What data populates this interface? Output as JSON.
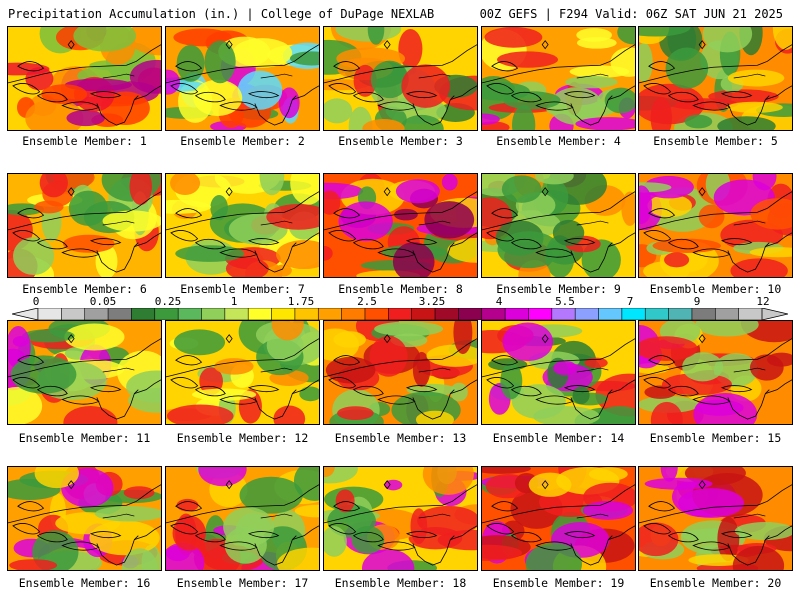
{
  "header": {
    "left": "Precipitation Accumulation (in.) | College of DuPage NEXLAB",
    "right": "00Z GEFS | F294 Valid: 06Z SAT JUN 21 2025"
  },
  "colorbar": {
    "labels": [
      "0",
      "0.05",
      "0.25",
      "1",
      "1.75",
      "2.5",
      "3.25",
      "4",
      "5.5",
      "7",
      "9",
      "12"
    ],
    "colors": [
      "#e6e6e6",
      "#c8c8c8",
      "#a0a0a0",
      "#7d7d7d",
      "#2e7d32",
      "#3c9a3c",
      "#5cb85c",
      "#8fcf5a",
      "#c6e65a",
      "#ffff2a",
      "#ffe600",
      "#ffc400",
      "#ffa000",
      "#ff7c00",
      "#ff5000",
      "#f01e1e",
      "#c81414",
      "#a00a28",
      "#8c0050",
      "#b4008c",
      "#dc00dc",
      "#ff00ff",
      "#b478ff",
      "#8ca0ff",
      "#64c8ff",
      "#00e6ff",
      "#30c8c8",
      "#50b4b4",
      "#7c7c7c",
      "#a0a0a0",
      "#c8c8c8"
    ]
  },
  "panels": [
    {
      "caption": "Ensemble Member: 1",
      "dominant": "#ffd400",
      "palette": [
        "#ff3c00",
        "#ff8c00",
        "#7dbf3c",
        "#f0142d",
        "#b4008c"
      ]
    },
    {
      "caption": "Ensemble Member: 2",
      "dominant": "#ffa000",
      "palette": [
        "#3c9a3c",
        "#ff3c00",
        "#dc00dc",
        "#5adcff",
        "#ffff2a"
      ]
    },
    {
      "caption": "Ensemble Member: 3",
      "dominant": "#ffd400",
      "palette": [
        "#3c9a3c",
        "#2e7d32",
        "#ff8c00",
        "#f01e1e",
        "#8fcf5a"
      ]
    },
    {
      "caption": "Ensemble Member: 4",
      "dominant": "#ffa000",
      "palette": [
        "#3c9a3c",
        "#f01e1e",
        "#ffff2a",
        "#8fcf5a",
        "#dc00dc"
      ]
    },
    {
      "caption": "Ensemble Member: 5",
      "dominant": "#ff8c00",
      "palette": [
        "#3c9a3c",
        "#2e7d32",
        "#f01e1e",
        "#ffd400",
        "#8fcf5a"
      ]
    },
    {
      "caption": "Ensemble Member: 6",
      "dominant": "#ffb400",
      "palette": [
        "#f01e1e",
        "#8fcf5a",
        "#3c9a3c",
        "#ffff2a",
        "#ff5000"
      ]
    },
    {
      "caption": "Ensemble Member: 7",
      "dominant": "#ffd400",
      "palette": [
        "#3c9a3c",
        "#8fcf5a",
        "#ff8c00",
        "#f01e1e",
        "#ffff2a"
      ]
    },
    {
      "caption": "Ensemble Member: 8",
      "dominant": "#ff5000",
      "palette": [
        "#dc00dc",
        "#f01e1e",
        "#3c9a3c",
        "#ffd400",
        "#8c0050"
      ]
    },
    {
      "caption": "Ensemble Member: 9",
      "dominant": "#ffd400",
      "palette": [
        "#3c9a3c",
        "#8fcf5a",
        "#f01e1e",
        "#ff8c00",
        "#2e7d32"
      ]
    },
    {
      "caption": "Ensemble Member: 10",
      "dominant": "#ff8c00",
      "palette": [
        "#f01e1e",
        "#ffd400",
        "#8fcf5a",
        "#dc00dc",
        "#ff5000"
      ]
    },
    {
      "caption": "Ensemble Member: 11",
      "dominant": "#ffa000",
      "palette": [
        "#3c9a3c",
        "#f01e1e",
        "#8fcf5a",
        "#dc00dc",
        "#ffff2a"
      ]
    },
    {
      "caption": "Ensemble Member: 12",
      "dominant": "#ffd400",
      "palette": [
        "#3c9a3c",
        "#8fcf5a",
        "#ff8c00",
        "#ffff2a",
        "#f01e1e"
      ]
    },
    {
      "caption": "Ensemble Member: 13",
      "dominant": "#ff8c00",
      "palette": [
        "#f01e1e",
        "#3c9a3c",
        "#c81414",
        "#ffd400",
        "#8fcf5a"
      ]
    },
    {
      "caption": "Ensemble Member: 14",
      "dominant": "#ffd400",
      "palette": [
        "#3c9a3c",
        "#2e7d32",
        "#8fcf5a",
        "#f01e1e",
        "#dc00dc"
      ]
    },
    {
      "caption": "Ensemble Member: 15",
      "dominant": "#ff8c00",
      "palette": [
        "#f01e1e",
        "#ffd400",
        "#c81414",
        "#8fcf5a",
        "#dc00dc"
      ]
    },
    {
      "caption": "Ensemble Member: 16",
      "dominant": "#ffa000",
      "palette": [
        "#f01e1e",
        "#dc00dc",
        "#3c9a3c",
        "#ffd400",
        "#8fcf5a"
      ]
    },
    {
      "caption": "Ensemble Member: 17",
      "dominant": "#ffa000",
      "palette": [
        "#f01e1e",
        "#ffd400",
        "#3c9a3c",
        "#dc00dc",
        "#8fcf5a"
      ]
    },
    {
      "caption": "Ensemble Member: 18",
      "dominant": "#ffd400",
      "palette": [
        "#f01e1e",
        "#ff8c00",
        "#8fcf5a",
        "#dc00dc",
        "#3c9a3c"
      ]
    },
    {
      "caption": "Ensemble Member: 19",
      "dominant": "#ff5000",
      "palette": [
        "#c81414",
        "#dc00dc",
        "#ffd400",
        "#3c9a3c",
        "#f01e1e"
      ]
    },
    {
      "caption": "Ensemble Member: 20",
      "dominant": "#ff8c00",
      "palette": [
        "#f01e1e",
        "#dc00dc",
        "#8fcf5a",
        "#ffd400",
        "#c81414"
      ]
    }
  ]
}
